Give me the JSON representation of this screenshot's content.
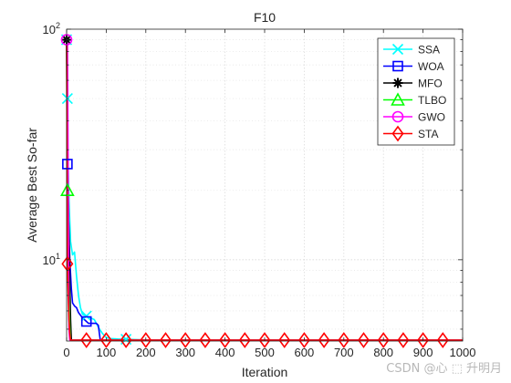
{
  "chart_data": {
    "type": "line",
    "title": "F10",
    "xlabel": "Iteration",
    "ylabel": "Average Best So-far",
    "x_scale": "linear",
    "y_scale": "log",
    "xlim": [
      0,
      1000
    ],
    "ylim": [
      4.44,
      100
    ],
    "x_ticks": [
      0,
      100,
      200,
      300,
      400,
      500,
      600,
      700,
      800,
      900,
      1000
    ],
    "y_major_ticks": [
      {
        "value": 10,
        "base": "10",
        "exp": "1"
      },
      {
        "value": 100,
        "base": "10",
        "exp": "2"
      }
    ],
    "y_minor_ticks": [
      5,
      6,
      7,
      8,
      9,
      20,
      30,
      40,
      50,
      60,
      70,
      80,
      90
    ],
    "grid": true,
    "legend_position": "top-right",
    "series": [
      {
        "name": "SSA",
        "color": "#00ffff",
        "marker": "x",
        "x": [
          0,
          3,
          6,
          10,
          15,
          20,
          25,
          30,
          35,
          40,
          50,
          60,
          70,
          80,
          90,
          100,
          110,
          130,
          150,
          180,
          220,
          300,
          500,
          1000
        ],
        "y": [
          90,
          30,
          18,
          12,
          10.5,
          10.8,
          8.5,
          7.0,
          6.2,
          5.8,
          5.7,
          5.6,
          5.5,
          5.1,
          4.8,
          4.6,
          4.55,
          4.53,
          4.52,
          4.5,
          4.48,
          4.48,
          4.48,
          4.48
        ],
        "marker_x": [
          0,
          2,
          50,
          150
        ]
      },
      {
        "name": "WOA",
        "color": "#0000ff",
        "marker": "square",
        "x": [
          0,
          2,
          5,
          8,
          12,
          15,
          20,
          25,
          30,
          40,
          50,
          55,
          65,
          70,
          75,
          80,
          85,
          90,
          1000
        ],
        "y": [
          90,
          26,
          15,
          10,
          7.5,
          6.5,
          6.3,
          6.2,
          5.9,
          5.6,
          5.4,
          5.3,
          5.3,
          5.3,
          5.3,
          5.2,
          4.48,
          4.48,
          4.48
        ],
        "marker_x": [
          2,
          50
        ]
      },
      {
        "name": "MFO",
        "color": "#000000",
        "marker": "asterisk",
        "x": [
          0,
          2,
          5,
          8,
          10,
          12,
          1000
        ],
        "y": [
          90,
          40,
          15,
          8,
          5.5,
          4.48,
          4.48
        ],
        "marker_x": [
          0
        ]
      },
      {
        "name": "TLBO",
        "color": "#00ff00",
        "marker": "triangle",
        "x": [
          0,
          2,
          5,
          8,
          10,
          1000
        ],
        "y": [
          90,
          20,
          9,
          5.2,
          4.48,
          4.48
        ],
        "marker_x": [
          2
        ]
      },
      {
        "name": "GWO",
        "color": "#ff00ff",
        "marker": "circle",
        "x": [
          0,
          2,
          3,
          5,
          6,
          8,
          1000
        ],
        "y": [
          90,
          90,
          50,
          10,
          5,
          4.48,
          4.48
        ],
        "marker_x": [
          0
        ]
      },
      {
        "name": "STA",
        "color": "#ff0000",
        "marker": "diamond",
        "x": [
          0,
          2,
          4,
          6,
          8,
          10,
          1000
        ],
        "y": [
          90,
          9.6,
          7,
          5.5,
          4.8,
          4.48,
          4.48
        ],
        "marker_x": [
          2,
          50,
          100,
          150,
          200,
          250,
          300,
          350,
          400,
          450,
          500,
          550,
          600,
          650,
          700,
          750,
          800,
          850,
          900,
          950
        ]
      }
    ]
  },
  "watermark": "CSDN @心 ⬚ 升明月"
}
